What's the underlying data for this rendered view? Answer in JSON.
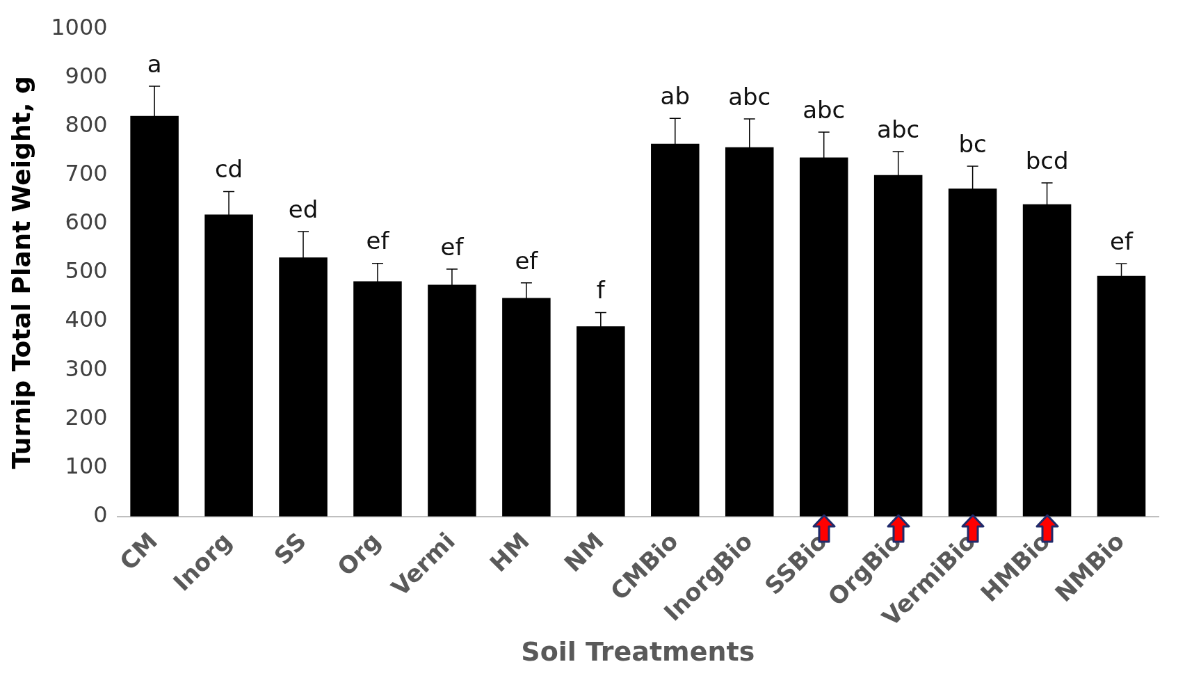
{
  "chart_data": {
    "type": "bar",
    "xlabel": "Soil Treatments",
    "ylabel": "Turnip Total Plant Weight, g",
    "categories": [
      "CM",
      "Inorg",
      "SS",
      "Org",
      "Vermi",
      "HM",
      "NM",
      "CMBio",
      "InorgBio",
      "SSBio",
      "OrgBio",
      "VermiBio",
      "HMBio",
      "NMBio"
    ],
    "values": [
      821,
      619,
      531,
      482,
      475,
      448,
      390,
      764,
      757,
      736,
      700,
      672,
      640,
      493
    ],
    "errors": [
      61,
      47,
      53,
      37,
      32,
      31,
      28,
      52,
      58,
      52,
      48,
      46,
      44,
      25
    ],
    "color": "#000000",
    "ylim": [
      0,
      1000
    ],
    "yticks": [
      0,
      100,
      200,
      300,
      400,
      500,
      600,
      700,
      800,
      900,
      1000
    ],
    "grid": false,
    "legend": false,
    "annotations": [
      {
        "text": "a",
        "x": "CM",
        "y": 882
      },
      {
        "text": "cd",
        "x": "Inorg",
        "y": 666
      },
      {
        "text": "ed",
        "x": "SS",
        "y": 584
      },
      {
        "text": "ef",
        "x": "Org",
        "y": 519
      },
      {
        "text": "ef",
        "x": "Vermi",
        "y": 507
      },
      {
        "text": "ef",
        "x": "HM",
        "y": 479
      },
      {
        "text": "f",
        "x": "NM",
        "y": 418
      },
      {
        "text": "ab",
        "x": "CMBio",
        "y": 816
      },
      {
        "text": "abc",
        "x": "InorgBio",
        "y": 815
      },
      {
        "text": "abc",
        "x": "SSBio",
        "y": 788
      },
      {
        "text": "abc",
        "x": "OrgBio",
        "y": 748
      },
      {
        "text": "bc",
        "x": "VermiBio",
        "y": 718
      },
      {
        "text": "bcd",
        "x": "HMBio",
        "y": 684
      },
      {
        "text": "ef",
        "x": "NMBio",
        "y": 518
      }
    ]
  }
}
